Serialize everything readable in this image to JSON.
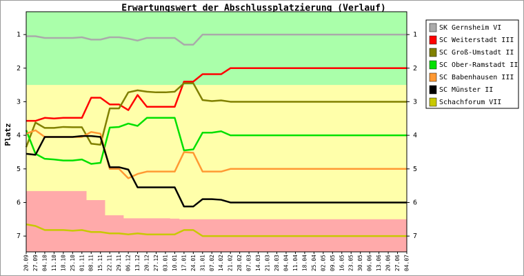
{
  "chart_data": {
    "type": "line",
    "title": "Erwartungswert der Abschlussplatzierung (Verlauf)",
    "y_label": "Platz",
    "categories": [
      "20.09",
      "27.09",
      "04.10",
      "11.10",
      "18.10",
      "25.10",
      "01.11",
      "08.11",
      "15.11",
      "22.11",
      "29.11",
      "06.12",
      "13.12",
      "20.12",
      "27.12",
      "03.01",
      "10.01",
      "17.01",
      "24.01",
      "31.01",
      "07.02",
      "14.02",
      "21.02",
      "28.02",
      "07.03",
      "14.03",
      "21.03",
      "28.03",
      "04.04",
      "11.04",
      "18.04",
      "25.04",
      "02.05",
      "09.05",
      "16.05",
      "23.05",
      "30.05",
      "06.06",
      "13.06",
      "20.06",
      "27.06",
      "04.07"
    ],
    "ylim": [
      0.32,
      7.47
    ],
    "y_inverted": true,
    "yticks": [
      1,
      2,
      3,
      4,
      5,
      6,
      7
    ],
    "promotion_zone_color": "#aaffaa",
    "middle_zone_color": "#ffffaa",
    "relegation_zone_color": "#ffaaaa",
    "promotion_zone_to": 2.5,
    "relegation_zone_from": [
      5.66,
      5.66,
      5.66,
      5.66,
      5.66,
      5.66,
      5.66,
      5.93,
      5.93,
      6.38,
      6.38,
      6.47,
      6.47,
      6.47,
      6.47,
      6.47,
      6.48,
      6.5,
      6.5,
      6.5,
      6.5,
      6.5,
      6.5,
      6.5,
      6.5,
      6.5,
      6.5,
      6.5,
      6.5,
      6.5,
      6.5,
      6.5,
      6.5,
      6.5,
      6.5,
      6.5,
      6.5,
      6.5,
      6.5,
      6.5,
      6.5,
      6.5
    ],
    "series": [
      {
        "name": "SK Gernsheim VI",
        "color": "#aaaaaa",
        "values": [
          1.05,
          1.05,
          1.1,
          1.1,
          1.1,
          1.1,
          1.08,
          1.15,
          1.15,
          1.08,
          1.08,
          1.12,
          1.18,
          1.1,
          1.1,
          1.1,
          1.1,
          1.3,
          1.3,
          1.0,
          1.0,
          1.0,
          1.0,
          1.0,
          1.0,
          1.0,
          1.0,
          1.0,
          1.0,
          1.0,
          1.0,
          1.0,
          1.0,
          1.0,
          1.0,
          1.0,
          1.0,
          1.0,
          1.0,
          1.0,
          1.0,
          1.0
        ]
      },
      {
        "name": "SC Weiterstadt III",
        "color": "#ff0000",
        "values": [
          3.57,
          3.57,
          3.48,
          3.5,
          3.48,
          3.48,
          3.48,
          2.88,
          2.88,
          3.08,
          3.08,
          3.25,
          2.8,
          3.15,
          3.15,
          3.15,
          3.15,
          2.4,
          2.4,
          2.18,
          2.18,
          2.18,
          2.0,
          2.0,
          2.0,
          2.0,
          2.0,
          2.0,
          2.0,
          2.0,
          2.0,
          2.0,
          2.0,
          2.0,
          2.0,
          2.0,
          2.0,
          2.0,
          2.0,
          2.0,
          2.0,
          2.0
        ]
      },
      {
        "name": "SC Groß-Umstadt II",
        "color": "#808000",
        "values": [
          4.35,
          3.62,
          3.78,
          3.78,
          3.75,
          3.76,
          3.76,
          4.25,
          4.28,
          3.2,
          3.2,
          2.72,
          2.66,
          2.7,
          2.72,
          2.72,
          2.7,
          2.45,
          2.45,
          2.95,
          2.98,
          2.96,
          3.0,
          3.0,
          3.0,
          3.0,
          3.0,
          3.0,
          3.0,
          3.0,
          3.0,
          3.0,
          3.0,
          3.0,
          3.0,
          3.0,
          3.0,
          3.0,
          3.0,
          3.0,
          3.0,
          3.0
        ]
      },
      {
        "name": "SC Ober-Ramstadt II",
        "color": "#00e000",
        "values": [
          3.85,
          4.55,
          4.7,
          4.72,
          4.75,
          4.75,
          4.72,
          4.85,
          4.82,
          3.77,
          3.75,
          3.65,
          3.72,
          3.48,
          3.48,
          3.48,
          3.48,
          4.45,
          4.42,
          3.92,
          3.92,
          3.88,
          4.0,
          4.0,
          4.0,
          4.0,
          4.0,
          4.0,
          4.0,
          4.0,
          4.0,
          4.0,
          4.0,
          4.0,
          4.0,
          4.0,
          4.0,
          4.0,
          4.0,
          4.0,
          4.0,
          4.0
        ]
      },
      {
        "name": "SC Babenhausen III",
        "color": "#ff9933",
        "values": [
          3.95,
          3.85,
          4.05,
          4.05,
          4.05,
          4.05,
          4.05,
          3.9,
          3.95,
          5.0,
          5.0,
          5.28,
          5.15,
          5.08,
          5.08,
          5.08,
          5.08,
          4.5,
          4.52,
          5.08,
          5.08,
          5.08,
          5.0,
          5.0,
          5.0,
          5.0,
          5.0,
          5.0,
          5.0,
          5.0,
          5.0,
          5.0,
          5.0,
          5.0,
          5.0,
          5.0,
          5.0,
          5.0,
          5.0,
          5.0,
          5.0,
          5.0
        ]
      },
      {
        "name": "SC Münster II",
        "color": "#000000",
        "values": [
          4.55,
          4.58,
          4.05,
          4.05,
          4.05,
          4.05,
          4.02,
          4.02,
          4.05,
          4.95,
          4.95,
          5.02,
          5.55,
          5.55,
          5.55,
          5.55,
          5.55,
          6.12,
          6.12,
          5.9,
          5.9,
          5.92,
          6.0,
          6.0,
          6.0,
          6.0,
          6.0,
          6.0,
          6.0,
          6.0,
          6.0,
          6.0,
          6.0,
          6.0,
          6.0,
          6.0,
          6.0,
          6.0,
          6.0,
          6.0,
          6.0,
          6.0
        ]
      },
      {
        "name": "Schachforum VII",
        "color": "#c8c800",
        "values": [
          6.65,
          6.7,
          6.82,
          6.82,
          6.82,
          6.84,
          6.82,
          6.88,
          6.88,
          6.92,
          6.92,
          6.95,
          6.92,
          6.95,
          6.95,
          6.95,
          6.95,
          6.82,
          6.82,
          7.0,
          7.0,
          7.0,
          7.0,
          7.0,
          7.0,
          7.0,
          7.0,
          7.0,
          7.0,
          7.0,
          7.0,
          7.0,
          7.0,
          7.0,
          7.0,
          7.0,
          7.0,
          7.0,
          7.0,
          7.0,
          7.0,
          7.0
        ]
      }
    ]
  }
}
